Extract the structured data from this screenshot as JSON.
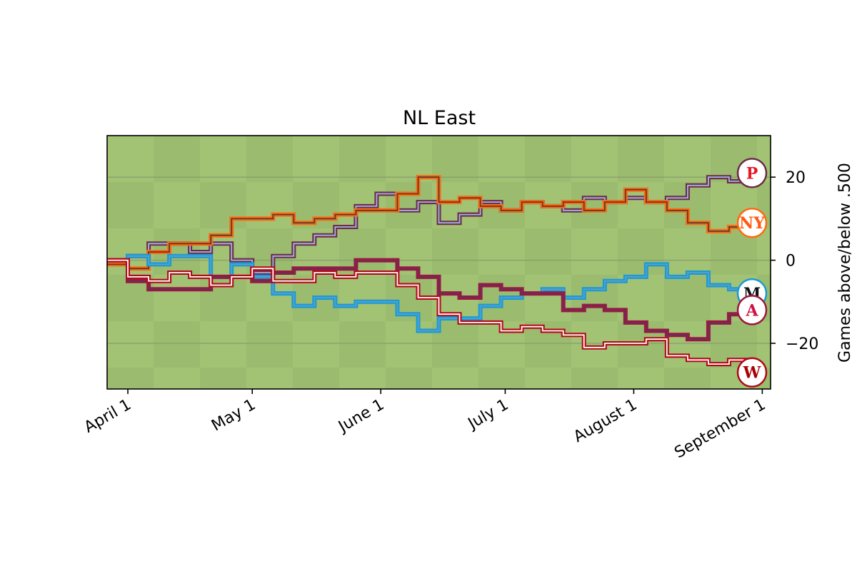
{
  "chart_data": {
    "type": "line",
    "title": "NL East",
    "ylabel": "Games above/below .500",
    "xlabel": "",
    "ylim": [
      -31,
      30
    ],
    "xlim": [
      -5,
      155
    ],
    "yticks": [
      {
        "value": 20,
        "label": "20"
      },
      {
        "value": 0,
        "label": "0"
      },
      {
        "value": -20,
        "label": "−20"
      }
    ],
    "xticks": [
      {
        "value": 0,
        "label": "April  1"
      },
      {
        "value": 30,
        "label": "May  1"
      },
      {
        "value": 61,
        "label": "June  1"
      },
      {
        "value": 91,
        "label": "July  1"
      },
      {
        "value": 122,
        "label": "August  1"
      },
      {
        "value": 153,
        "label": "September  1"
      }
    ],
    "grid": {
      "y": true,
      "x": false
    },
    "legend": "team logos at right end of each line",
    "series": [
      {
        "team": "phillies",
        "color": "#6f2b47",
        "edge": "#9cb6e6",
        "style": "step",
        "logo_letter": "P",
        "logo_color": "#e81828",
        "x": [
          -5,
          0,
          5,
          10,
          15,
          20,
          25,
          30,
          35,
          40,
          45,
          50,
          55,
          60,
          65,
          70,
          75,
          80,
          85,
          90,
          95,
          100,
          105,
          110,
          115,
          120,
          125,
          130,
          135,
          140,
          145,
          150
        ],
        "y": [
          0,
          1,
          4,
          4,
          2,
          4,
          0,
          -3,
          1,
          4,
          6,
          8,
          13,
          16,
          12,
          14,
          9,
          11,
          14,
          12,
          14,
          13,
          12,
          15,
          14,
          15,
          14,
          15,
          18,
          20,
          19,
          21
        ]
      },
      {
        "team": "mets",
        "color": "#ff6a10",
        "edge": "#5b3a2f",
        "style": "step",
        "logo_letter": "NY",
        "logo_color": "#ff5910",
        "x": [
          -5,
          0,
          5,
          10,
          15,
          20,
          25,
          30,
          35,
          40,
          45,
          50,
          55,
          60,
          65,
          70,
          75,
          80,
          85,
          90,
          95,
          100,
          105,
          110,
          115,
          120,
          125,
          130,
          135,
          140,
          145,
          150
        ],
        "y": [
          -1,
          -2,
          2,
          4,
          4,
          6,
          10,
          10,
          11,
          9,
          10,
          11,
          12,
          12,
          16,
          20,
          14,
          15,
          13,
          12,
          14,
          13,
          14,
          12,
          14,
          17,
          14,
          12,
          9,
          7,
          8,
          9
        ]
      },
      {
        "team": "marlins",
        "color": "#1a9ad6",
        "edge": "#5aa0c8",
        "style": "step",
        "logo_letter": "M",
        "logo_color": "#111111",
        "x": [
          -5,
          0,
          5,
          10,
          15,
          20,
          25,
          30,
          35,
          40,
          45,
          50,
          55,
          60,
          65,
          70,
          75,
          80,
          85,
          90,
          95,
          100,
          105,
          110,
          115,
          120,
          125,
          130,
          135,
          140,
          145,
          150
        ],
        "y": [
          0,
          1,
          -1,
          1,
          1,
          -4,
          -1,
          -4,
          -8,
          -11,
          -9,
          -11,
          -10,
          -10,
          -13,
          -17,
          -14,
          -14,
          -11,
          -9,
          -8,
          -7,
          -9,
          -7,
          -5,
          -4,
          -1,
          -4,
          -3,
          -6,
          -7,
          -8
        ]
      },
      {
        "team": "braves",
        "color": "#9c1840",
        "edge": "#6a2e55",
        "style": "step",
        "logo_letter": "A",
        "logo_color": "#ce1141",
        "x": [
          -5,
          0,
          5,
          10,
          15,
          20,
          25,
          30,
          35,
          40,
          45,
          50,
          55,
          60,
          65,
          70,
          75,
          80,
          85,
          90,
          95,
          100,
          105,
          110,
          115,
          120,
          125,
          130,
          135,
          140,
          145,
          150
        ],
        "y": [
          0,
          -5,
          -7,
          -7,
          -7,
          -4,
          -4,
          -5,
          -3,
          -2,
          -2,
          -2,
          0,
          0,
          -2,
          -4,
          -8,
          -9,
          -6,
          -7,
          -8,
          -8,
          -12,
          -11,
          -12,
          -15,
          -17,
          -18,
          -19,
          -15,
          -13,
          -12
        ]
      },
      {
        "team": "nationals",
        "color": "#b10a18",
        "edge": "#ffffff",
        "style": "step",
        "logo_letter": "W",
        "logo_color": "#ab0003",
        "x": [
          -5,
          0,
          5,
          10,
          15,
          20,
          25,
          30,
          35,
          40,
          45,
          50,
          55,
          60,
          65,
          70,
          75,
          80,
          85,
          90,
          95,
          100,
          105,
          110,
          115,
          120,
          125,
          130,
          135,
          140,
          145,
          150
        ],
        "y": [
          0,
          -4,
          -5,
          -3,
          -4,
          -6,
          -4,
          -2,
          -5,
          -5,
          -3,
          -4,
          -3,
          -3,
          -6,
          -9,
          -13,
          -15,
          -15,
          -17,
          -16,
          -17,
          -18,
          -21,
          -20,
          -20,
          -19,
          -23,
          -24,
          -25,
          -24,
          -27
        ]
      }
    ]
  }
}
